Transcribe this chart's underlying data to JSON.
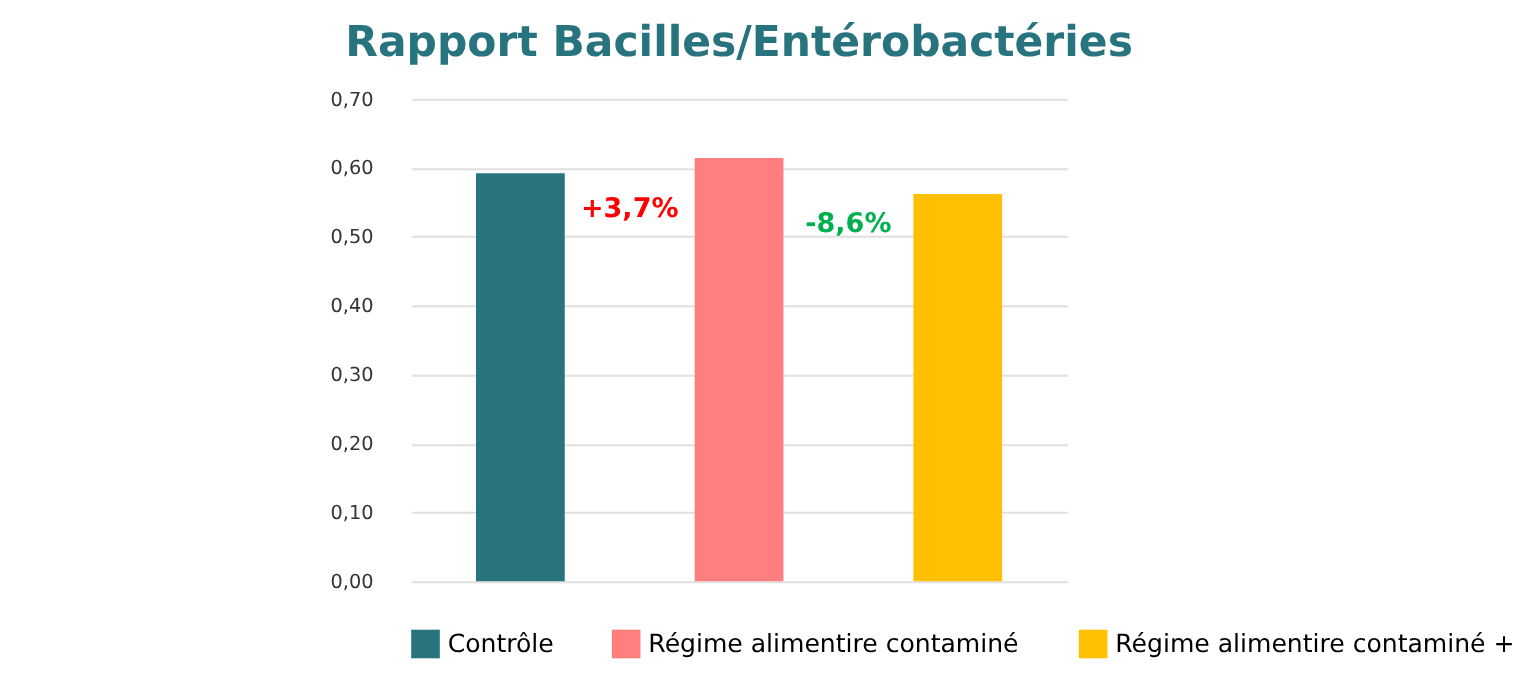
{
  "chart_data": {
    "type": "bar",
    "title": "Rapport Bacilles/Entérobactéries",
    "categories": [
      null,
      null,
      null
    ],
    "series": [
      {
        "name": "Contrôle",
        "color": "#27737e",
        "values": [
          0.592,
          null,
          null
        ]
      },
      {
        "name": "Régime alimentire contaminé",
        "color": "#ff7f7f",
        "values": [
          null,
          0.614,
          null
        ]
      },
      {
        "name": "Régime alimentire contaminé +",
        "color": "#ffc000",
        "values": [
          null,
          null,
          0.562
        ]
      }
    ],
    "ylim": [
      0,
      0.7
    ],
    "yticks": [
      {
        "value": 0,
        "label": "0,00"
      },
      {
        "value": 0.1,
        "label": "0,10"
      },
      {
        "value": 0.2,
        "label": "0,20"
      },
      {
        "value": 0.3,
        "label": "0,30"
      },
      {
        "value": 0.4,
        "label": "0,40"
      },
      {
        "value": 0.5,
        "label": "0,50"
      },
      {
        "value": 0.6,
        "label": "0,60"
      },
      {
        "value": 0.7,
        "label": "0,70"
      }
    ],
    "annotations": [
      "+3,7%",
      "-8,6%"
    ],
    "grid": "y",
    "legend": "bottom",
    "tick_labels": "y"
  }
}
